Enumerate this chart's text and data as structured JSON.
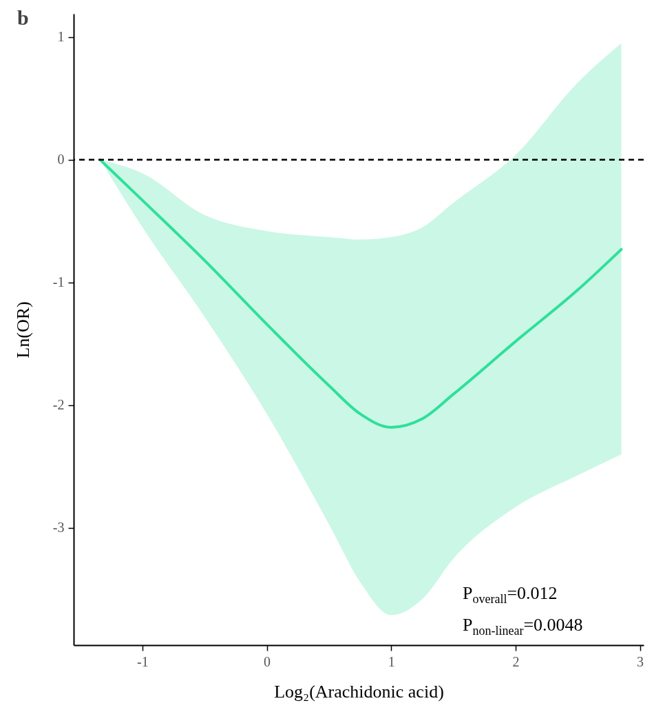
{
  "chart_data": {
    "type": "line",
    "title": "b",
    "xlabel": "Log₂(Arachidonic acid)",
    "ylabel": "Ln(OR)",
    "xlim": [
      -1.553,
      3.03
    ],
    "ylim": [
      -3.955,
      1.19
    ],
    "xticks": [
      -1,
      0,
      1,
      2,
      3
    ],
    "yticks": [
      -3,
      -2,
      -1,
      0,
      1
    ],
    "grid": false,
    "x": [
      -1.34,
      -1,
      -0.5,
      0,
      0.5,
      0.75,
      1,
      1.25,
      1.5,
      2,
      2.5,
      2.85
    ],
    "series": [
      {
        "color": "#2ee09a",
        "values": [
          0,
          -0.33,
          -0.82,
          -1.34,
          -1.84,
          -2.07,
          -2.18,
          -2.11,
          -1.91,
          -1.48,
          -1.06,
          -0.73
        ],
        "lower": [
          0,
          -0.55,
          -1.28,
          -2.07,
          -2.97,
          -3.44,
          -3.71,
          -3.58,
          -3.25,
          -2.83,
          -2.57,
          -2.4
        ],
        "upper": [
          0,
          -0.11,
          -0.45,
          -0.58,
          -0.63,
          -0.65,
          -0.63,
          -0.55,
          -0.35,
          0.04,
          0.63,
          0.95
        ]
      }
    ],
    "ref_lines": [
      {
        "axis": "y",
        "value": 0,
        "color": "#000000",
        "line_style": "dashed"
      }
    ],
    "annotations": [
      "P$_{overall}$=0.012",
      "P$_{non-linear}$=0.0048"
    ]
  }
}
